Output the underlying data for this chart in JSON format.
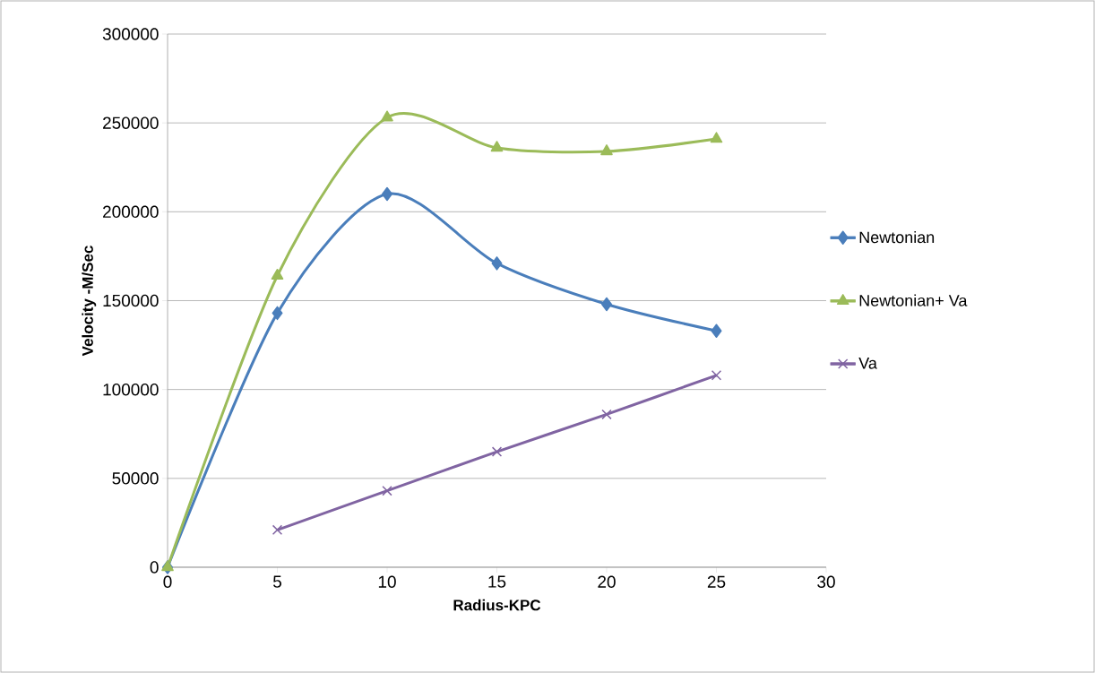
{
  "chart_data": {
    "type": "line",
    "xlabel": "Radius-KPC",
    "ylabel": "Velocity -M/Sec",
    "x": [
      0,
      5,
      10,
      15,
      20,
      25
    ],
    "series": [
      {
        "name": "Newtonian",
        "color": "#4a7ebb",
        "marker": "diamond",
        "values": [
          0,
          143000,
          210000,
          171000,
          148000,
          133000
        ]
      },
      {
        "name": "Newtonian+ Va",
        "color": "#9bbb59",
        "marker": "triangle",
        "values": [
          0,
          164000,
          253000,
          236000,
          234000,
          241000
        ]
      },
      {
        "name": "Va",
        "color": "#8064a2",
        "marker": "cross",
        "values": [
          null,
          21000,
          43000,
          65000,
          86000,
          108000
        ]
      }
    ],
    "xlim": [
      0,
      30
    ],
    "xticks": [
      0,
      5,
      10,
      15,
      20,
      25,
      30
    ],
    "ylim": [
      0,
      300000
    ],
    "yticks": [
      0,
      50000,
      100000,
      150000,
      200000,
      250000,
      300000
    ],
    "grid": "y",
    "legend": "right",
    "line_style": "solid"
  }
}
